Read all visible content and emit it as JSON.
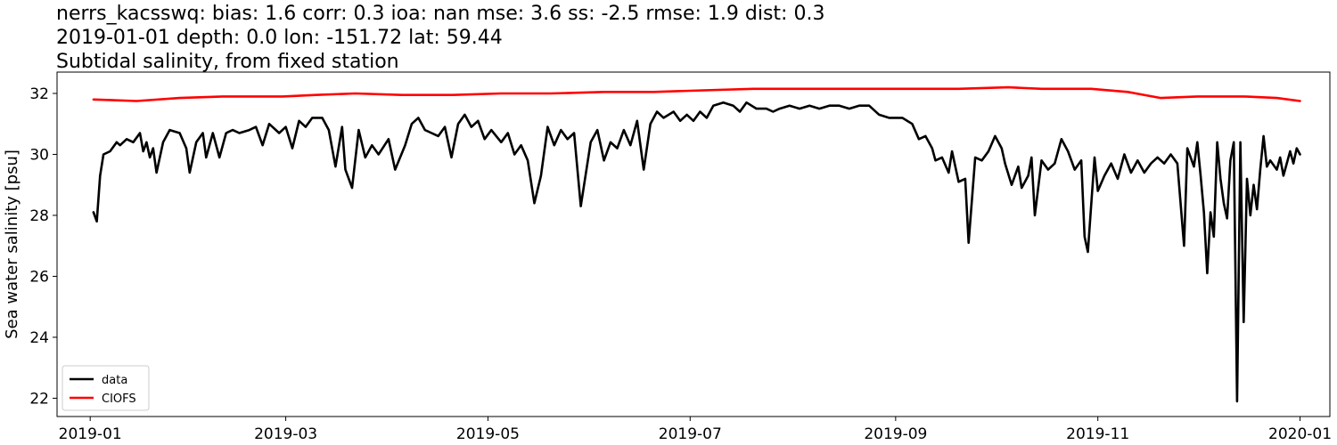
{
  "chart_data": {
    "type": "line",
    "title_lines": [
      "nerrs_kacsswq: bias: 1.6  corr: 0.3  ioa: nan  mse: 3.6  ss: -2.5  rmse: 1.9  dist: 0.3",
      "2019-01-01 depth: 0.0 lon: -151.72 lat: 59.44",
      "Subtidal salinity, from fixed station"
    ],
    "xlabel": "",
    "ylabel": "Sea water salinity [psu]",
    "x_axis_type": "date",
    "xlim": [
      "2018-12-22",
      "2020-01-10"
    ],
    "ylim": [
      21.4,
      32.7
    ],
    "x_ticks": [
      {
        "date": "2019-01-01",
        "label": "2019-01"
      },
      {
        "date": "2019-03-01",
        "label": "2019-03"
      },
      {
        "date": "2019-05-01",
        "label": "2019-05"
      },
      {
        "date": "2019-07-01",
        "label": "2019-07"
      },
      {
        "date": "2019-09-01",
        "label": "2019-09"
      },
      {
        "date": "2019-11-01",
        "label": "2019-11"
      },
      {
        "date": "2020-01-01",
        "label": "2020-01"
      }
    ],
    "y_ticks": [
      22,
      24,
      26,
      28,
      30,
      32
    ],
    "grid": false,
    "legend_position": "lower-left",
    "series": [
      {
        "name": "data",
        "color": "#000000",
        "points": [
          [
            "2019-01-02",
            28.1
          ],
          [
            "2019-01-03",
            27.8
          ],
          [
            "2019-01-04",
            29.3
          ],
          [
            "2019-01-05",
            30.0
          ],
          [
            "2019-01-07",
            30.1
          ],
          [
            "2019-01-09",
            30.4
          ],
          [
            "2019-01-10",
            30.3
          ],
          [
            "2019-01-12",
            30.5
          ],
          [
            "2019-01-14",
            30.4
          ],
          [
            "2019-01-16",
            30.7
          ],
          [
            "2019-01-17",
            30.1
          ],
          [
            "2019-01-18",
            30.4
          ],
          [
            "2019-01-19",
            29.9
          ],
          [
            "2019-01-20",
            30.2
          ],
          [
            "2019-01-21",
            29.4
          ],
          [
            "2019-01-23",
            30.4
          ],
          [
            "2019-01-25",
            30.8
          ],
          [
            "2019-01-28",
            30.7
          ],
          [
            "2019-01-30",
            30.2
          ],
          [
            "2019-01-31",
            29.4
          ],
          [
            "2019-02-02",
            30.4
          ],
          [
            "2019-02-04",
            30.7
          ],
          [
            "2019-02-05",
            29.9
          ],
          [
            "2019-02-07",
            30.7
          ],
          [
            "2019-02-09",
            29.9
          ],
          [
            "2019-02-11",
            30.7
          ],
          [
            "2019-02-13",
            30.8
          ],
          [
            "2019-02-15",
            30.7
          ],
          [
            "2019-02-18",
            30.8
          ],
          [
            "2019-02-20",
            30.9
          ],
          [
            "2019-02-22",
            30.3
          ],
          [
            "2019-02-24",
            31.0
          ],
          [
            "2019-02-27",
            30.7
          ],
          [
            "2019-03-01",
            30.9
          ],
          [
            "2019-03-03",
            30.2
          ],
          [
            "2019-03-05",
            31.1
          ],
          [
            "2019-03-07",
            30.9
          ],
          [
            "2019-03-09",
            31.2
          ],
          [
            "2019-03-12",
            31.2
          ],
          [
            "2019-03-14",
            30.8
          ],
          [
            "2019-03-16",
            29.6
          ],
          [
            "2019-03-18",
            30.9
          ],
          [
            "2019-03-19",
            29.5
          ],
          [
            "2019-03-21",
            28.9
          ],
          [
            "2019-03-23",
            30.8
          ],
          [
            "2019-03-25",
            29.9
          ],
          [
            "2019-03-27",
            30.3
          ],
          [
            "2019-03-29",
            30.0
          ],
          [
            "2019-04-01",
            30.5
          ],
          [
            "2019-04-03",
            29.5
          ],
          [
            "2019-04-06",
            30.3
          ],
          [
            "2019-04-08",
            31.0
          ],
          [
            "2019-04-10",
            31.2
          ],
          [
            "2019-04-12",
            30.8
          ],
          [
            "2019-04-14",
            30.7
          ],
          [
            "2019-04-16",
            30.6
          ],
          [
            "2019-04-18",
            30.9
          ],
          [
            "2019-04-20",
            29.9
          ],
          [
            "2019-04-22",
            31.0
          ],
          [
            "2019-04-24",
            31.3
          ],
          [
            "2019-04-26",
            30.9
          ],
          [
            "2019-04-28",
            31.1
          ],
          [
            "2019-04-30",
            30.5
          ],
          [
            "2019-05-02",
            30.8
          ],
          [
            "2019-05-05",
            30.4
          ],
          [
            "2019-05-07",
            30.7
          ],
          [
            "2019-05-09",
            30.0
          ],
          [
            "2019-05-11",
            30.3
          ],
          [
            "2019-05-13",
            29.8
          ],
          [
            "2019-05-15",
            28.4
          ],
          [
            "2019-05-17",
            29.3
          ],
          [
            "2019-05-19",
            30.9
          ],
          [
            "2019-05-21",
            30.3
          ],
          [
            "2019-05-23",
            30.8
          ],
          [
            "2019-05-25",
            30.5
          ],
          [
            "2019-05-27",
            30.7
          ],
          [
            "2019-05-29",
            28.3
          ],
          [
            "2019-06-01",
            30.4
          ],
          [
            "2019-06-03",
            30.8
          ],
          [
            "2019-06-05",
            29.8
          ],
          [
            "2019-06-07",
            30.4
          ],
          [
            "2019-06-09",
            30.2
          ],
          [
            "2019-06-11",
            30.8
          ],
          [
            "2019-06-13",
            30.3
          ],
          [
            "2019-06-15",
            31.1
          ],
          [
            "2019-06-17",
            29.5
          ],
          [
            "2019-06-19",
            31.0
          ],
          [
            "2019-06-21",
            31.4
          ],
          [
            "2019-06-23",
            31.2
          ],
          [
            "2019-06-26",
            31.4
          ],
          [
            "2019-06-28",
            31.1
          ],
          [
            "2019-06-30",
            31.3
          ],
          [
            "2019-07-02",
            31.1
          ],
          [
            "2019-07-04",
            31.4
          ],
          [
            "2019-07-06",
            31.2
          ],
          [
            "2019-07-08",
            31.6
          ],
          [
            "2019-07-11",
            31.7
          ],
          [
            "2019-07-14",
            31.6
          ],
          [
            "2019-07-16",
            31.4
          ],
          [
            "2019-07-18",
            31.7
          ],
          [
            "2019-07-21",
            31.5
          ],
          [
            "2019-07-24",
            31.5
          ],
          [
            "2019-07-26",
            31.4
          ],
          [
            "2019-07-28",
            31.5
          ],
          [
            "2019-07-31",
            31.6
          ],
          [
            "2019-08-03",
            31.5
          ],
          [
            "2019-08-06",
            31.6
          ],
          [
            "2019-08-09",
            31.5
          ],
          [
            "2019-08-12",
            31.6
          ],
          [
            "2019-08-15",
            31.6
          ],
          [
            "2019-08-18",
            31.5
          ],
          [
            "2019-08-21",
            31.6
          ],
          [
            "2019-08-24",
            31.6
          ],
          [
            "2019-08-27",
            31.3
          ],
          [
            "2019-08-30",
            31.2
          ],
          [
            "2019-09-03",
            31.2
          ],
          [
            "2019-09-06",
            31.0
          ],
          [
            "2019-09-08",
            30.5
          ],
          [
            "2019-09-10",
            30.6
          ],
          [
            "2019-09-12",
            30.2
          ],
          [
            "2019-09-13",
            29.8
          ],
          [
            "2019-09-15",
            29.9
          ],
          [
            "2019-09-17",
            29.4
          ],
          [
            "2019-09-18",
            30.1
          ],
          [
            "2019-09-20",
            29.1
          ],
          [
            "2019-09-22",
            29.2
          ],
          [
            "2019-09-23",
            27.1
          ],
          [
            "2019-09-25",
            29.9
          ],
          [
            "2019-09-27",
            29.8
          ],
          [
            "2019-09-29",
            30.1
          ],
          [
            "2019-10-01",
            30.6
          ],
          [
            "2019-10-03",
            30.2
          ],
          [
            "2019-10-04",
            29.7
          ],
          [
            "2019-10-06",
            29.0
          ],
          [
            "2019-10-08",
            29.6
          ],
          [
            "2019-10-09",
            28.9
          ],
          [
            "2019-10-11",
            29.3
          ],
          [
            "2019-10-12",
            29.9
          ],
          [
            "2019-10-13",
            28.0
          ],
          [
            "2019-10-15",
            29.8
          ],
          [
            "2019-10-17",
            29.5
          ],
          [
            "2019-10-19",
            29.7
          ],
          [
            "2019-10-21",
            30.5
          ],
          [
            "2019-10-23",
            30.1
          ],
          [
            "2019-10-25",
            29.5
          ],
          [
            "2019-10-27",
            29.8
          ],
          [
            "2019-10-28",
            27.3
          ],
          [
            "2019-10-29",
            26.8
          ],
          [
            "2019-10-31",
            29.9
          ],
          [
            "2019-11-01",
            28.8
          ],
          [
            "2019-11-03",
            29.3
          ],
          [
            "2019-11-05",
            29.7
          ],
          [
            "2019-11-07",
            29.2
          ],
          [
            "2019-11-09",
            30.0
          ],
          [
            "2019-11-11",
            29.4
          ],
          [
            "2019-11-13",
            29.8
          ],
          [
            "2019-11-15",
            29.4
          ],
          [
            "2019-11-17",
            29.7
          ],
          [
            "2019-11-19",
            29.9
          ],
          [
            "2019-11-21",
            29.7
          ],
          [
            "2019-11-23",
            30.0
          ],
          [
            "2019-11-25",
            29.7
          ],
          [
            "2019-11-27",
            27.0
          ],
          [
            "2019-11-28",
            30.2
          ],
          [
            "2019-11-30",
            29.6
          ],
          [
            "2019-12-01",
            30.4
          ],
          [
            "2019-12-02",
            29.3
          ],
          [
            "2019-12-03",
            28.1
          ],
          [
            "2019-12-04",
            26.1
          ],
          [
            "2019-12-05",
            28.1
          ],
          [
            "2019-12-06",
            27.3
          ],
          [
            "2019-12-07",
            30.4
          ],
          [
            "2019-12-08",
            29.2
          ],
          [
            "2019-12-09",
            28.4
          ],
          [
            "2019-12-10",
            27.9
          ],
          [
            "2019-12-11",
            29.8
          ],
          [
            "2019-12-12",
            30.4
          ],
          [
            "2019-12-13",
            21.9
          ],
          [
            "2019-12-14",
            30.4
          ],
          [
            "2019-12-15",
            24.5
          ],
          [
            "2019-12-16",
            29.2
          ],
          [
            "2019-12-17",
            28.0
          ],
          [
            "2019-12-18",
            29.0
          ],
          [
            "2019-12-19",
            28.2
          ],
          [
            "2019-12-20",
            29.5
          ],
          [
            "2019-12-21",
            30.6
          ],
          [
            "2019-12-22",
            29.6
          ],
          [
            "2019-12-23",
            29.8
          ],
          [
            "2019-12-25",
            29.5
          ],
          [
            "2019-12-26",
            29.9
          ],
          [
            "2019-12-27",
            29.3
          ],
          [
            "2019-12-29",
            30.1
          ],
          [
            "2019-12-30",
            29.7
          ],
          [
            "2019-12-31",
            30.2
          ],
          [
            "2020-01-01",
            30.0
          ]
        ]
      },
      {
        "name": "CIOFS",
        "color": "#ff0000",
        "points": [
          [
            "2019-01-02",
            31.8
          ],
          [
            "2019-01-15",
            31.75
          ],
          [
            "2019-01-28",
            31.85
          ],
          [
            "2019-02-10",
            31.9
          ],
          [
            "2019-02-28",
            31.9
          ],
          [
            "2019-03-10",
            31.95
          ],
          [
            "2019-03-22",
            32.0
          ],
          [
            "2019-04-05",
            31.95
          ],
          [
            "2019-04-20",
            31.95
          ],
          [
            "2019-05-05",
            32.0
          ],
          [
            "2019-05-20",
            32.0
          ],
          [
            "2019-06-05",
            32.05
          ],
          [
            "2019-06-20",
            32.05
          ],
          [
            "2019-07-05",
            32.1
          ],
          [
            "2019-07-20",
            32.15
          ],
          [
            "2019-08-05",
            32.15
          ],
          [
            "2019-08-20",
            32.15
          ],
          [
            "2019-09-05",
            32.15
          ],
          [
            "2019-09-20",
            32.15
          ],
          [
            "2019-10-05",
            32.2
          ],
          [
            "2019-10-15",
            32.15
          ],
          [
            "2019-10-30",
            32.15
          ],
          [
            "2019-11-10",
            32.05
          ],
          [
            "2019-11-20",
            31.85
          ],
          [
            "2019-12-01",
            31.9
          ],
          [
            "2019-12-15",
            31.9
          ],
          [
            "2019-12-25",
            31.85
          ],
          [
            "2020-01-01",
            31.75
          ]
        ]
      }
    ]
  }
}
